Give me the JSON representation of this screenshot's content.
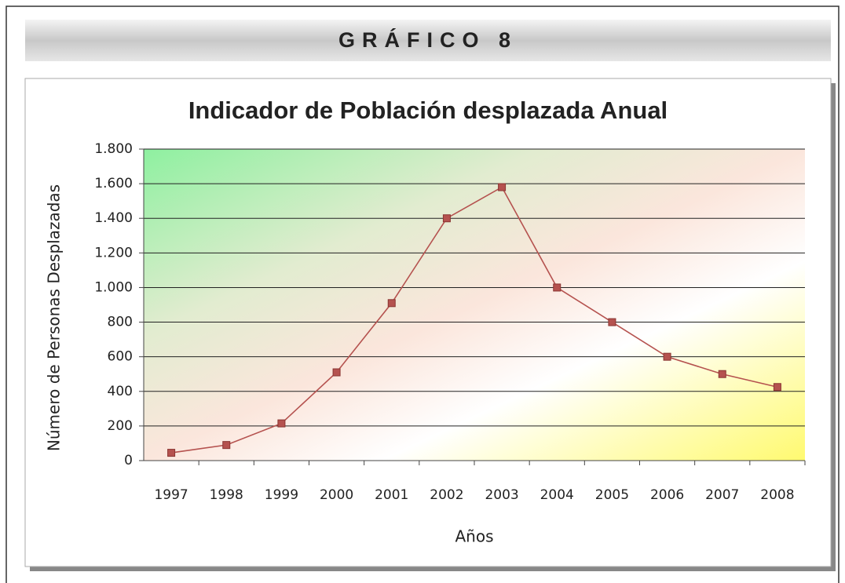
{
  "banner": "GRÁFICO 8",
  "chart_data": {
    "type": "line",
    "title": "Indicador de Población desplazada Anual",
    "x_label": "Años",
    "y_label": "Número de Personas Desplazadas",
    "categories": [
      "1997",
      "1998",
      "1999",
      "2000",
      "2001",
      "2002",
      "2003",
      "2004",
      "2005",
      "2006",
      "2007",
      "2008"
    ],
    "series": [
      {
        "name": "Población desplazada",
        "color": "#b5524f",
        "values": [
          45,
          90,
          215,
          510,
          910,
          1400,
          1580,
          1000,
          800,
          600,
          500,
          425
        ]
      }
    ],
    "ylim": [
      0,
      1800
    ],
    "yticks": [
      0,
      200,
      400,
      600,
      800,
      {
        "value": 1000,
        "label": "1.000"
      },
      {
        "value": 1200,
        "label": "1.200"
      },
      {
        "value": 1400,
        "label": "1.400"
      },
      {
        "value": 1600,
        "label": "1.600"
      },
      {
        "value": 1800,
        "label": "1.800"
      }
    ],
    "grid": true,
    "legend": false
  }
}
